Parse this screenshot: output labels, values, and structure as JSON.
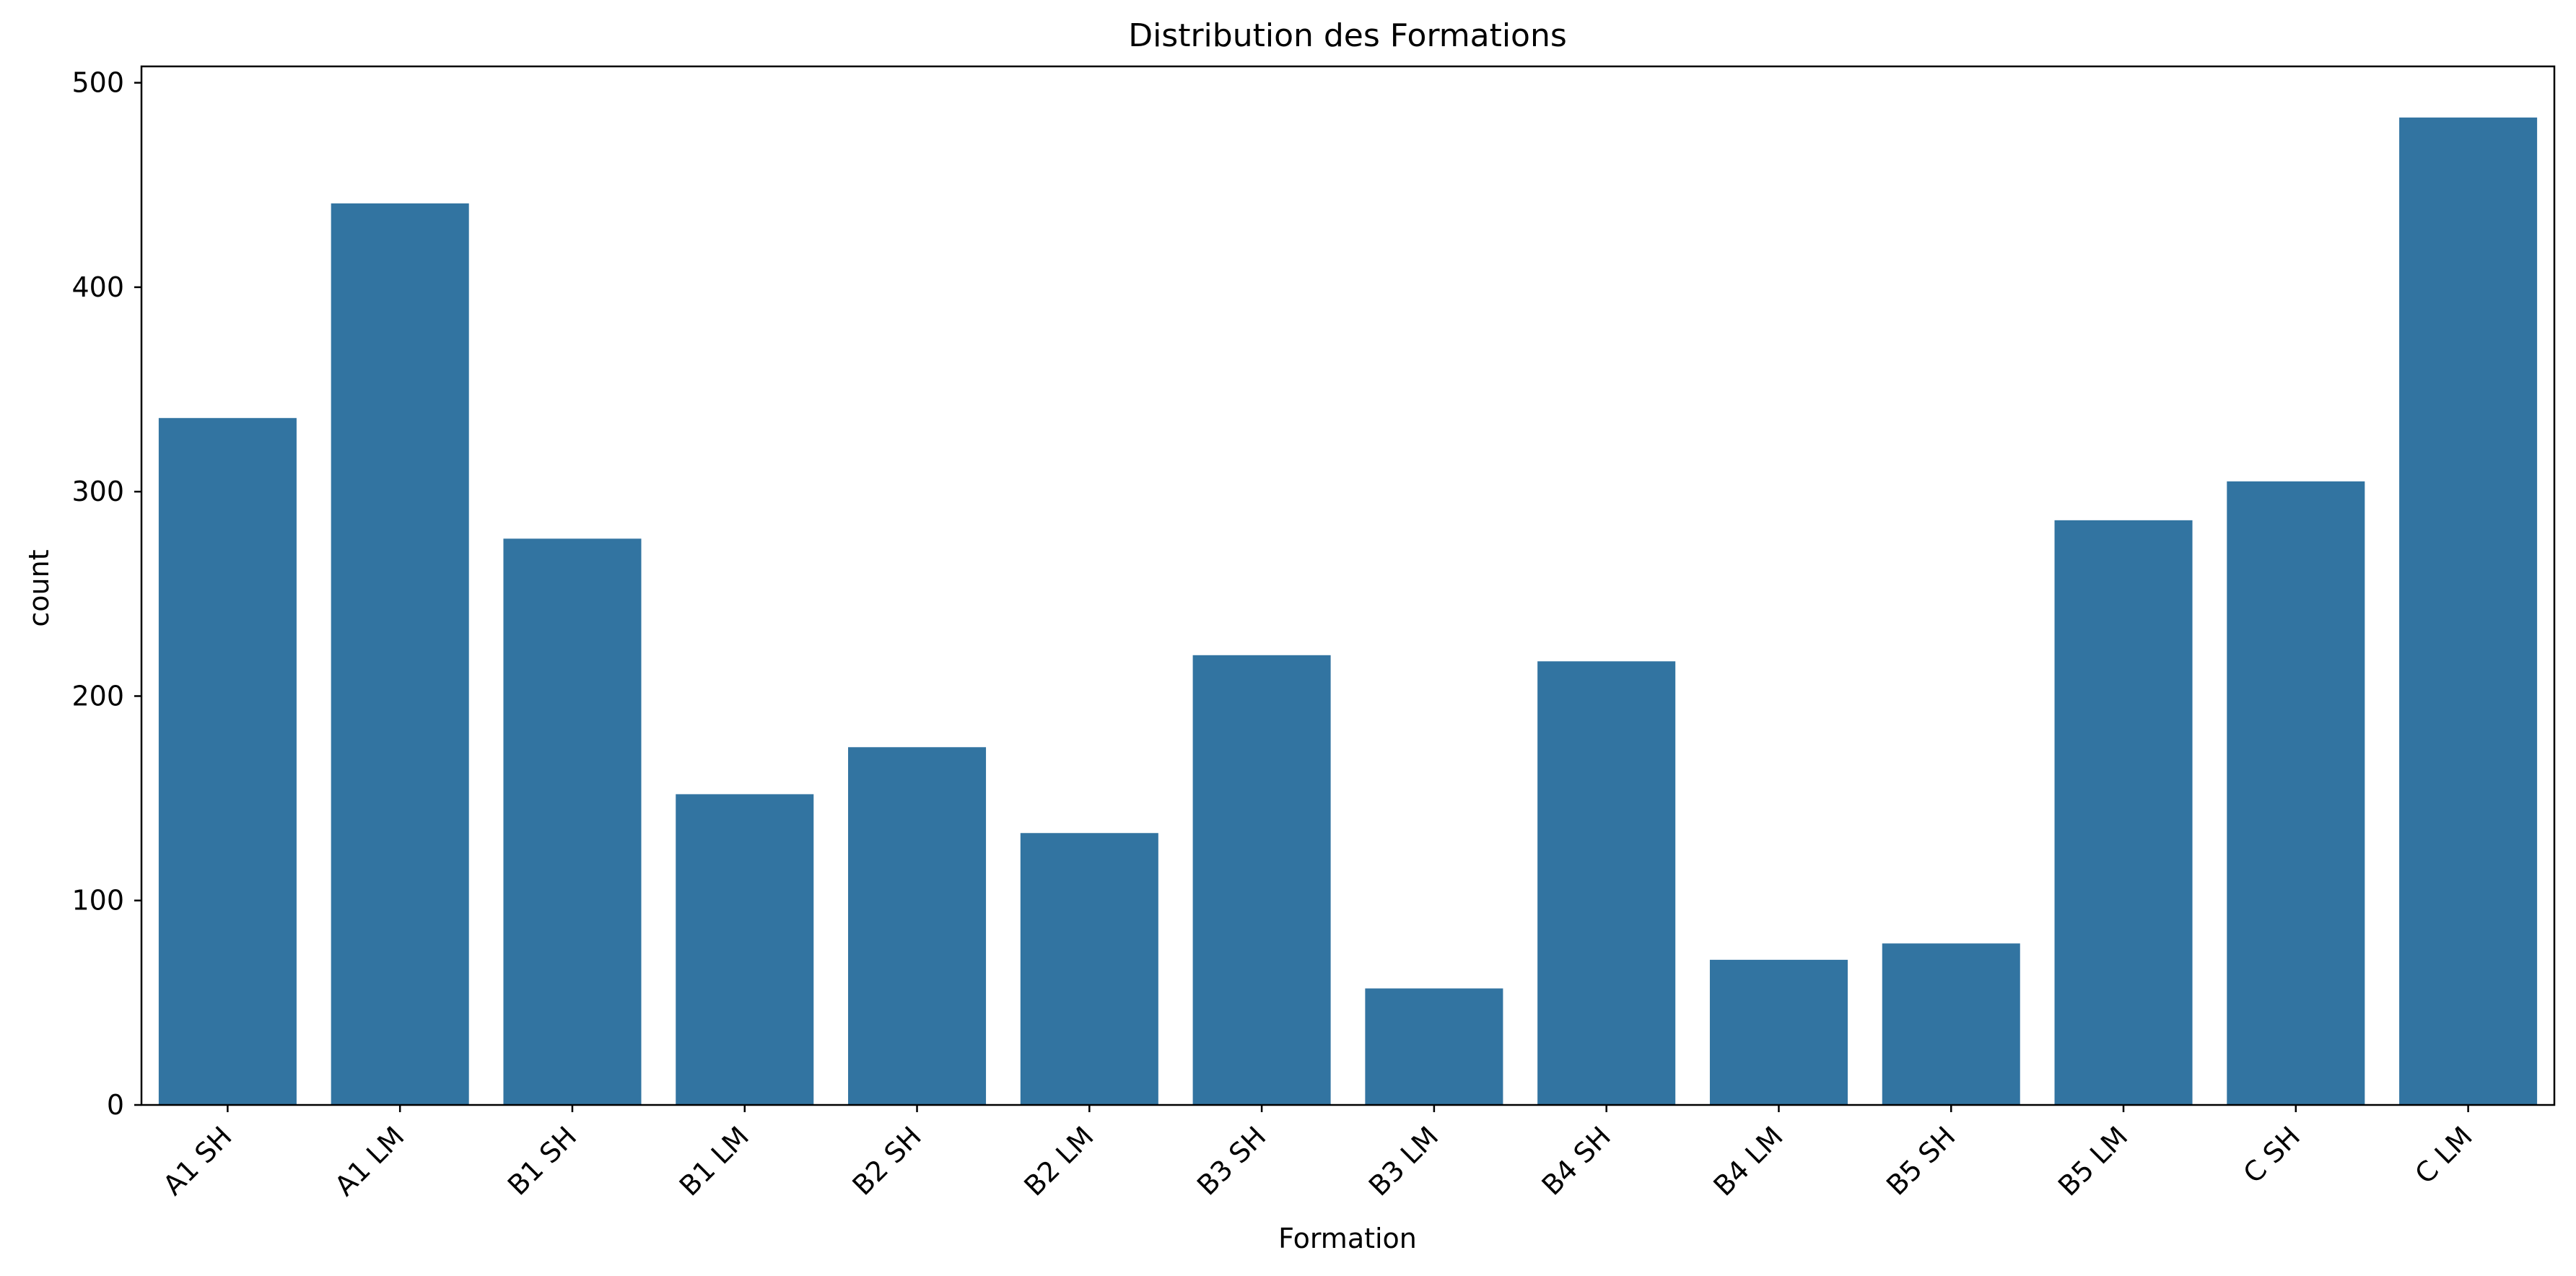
{
  "chart_data": {
    "type": "bar",
    "title": "Distribution des Formations",
    "xlabel": "Formation",
    "ylabel": "count",
    "categories": [
      "A1 SH",
      "A1 LM",
      "B1 SH",
      "B1 LM",
      "B2 SH",
      "B2 LM",
      "B3 SH",
      "B3 LM",
      "B4 SH",
      "B4 LM",
      "B5 SH",
      "B5 LM",
      "C SH",
      "C LM"
    ],
    "values": [
      336,
      441,
      277,
      152,
      175,
      133,
      220,
      57,
      217,
      71,
      79,
      286,
      305,
      483
    ],
    "ylim": [
      0,
      508
    ],
    "yticks": [
      0,
      100,
      200,
      300,
      400,
      500
    ],
    "x_tick_rotation_deg": 45,
    "grid": false,
    "legend": "none",
    "bar_color": "#3274a1"
  }
}
